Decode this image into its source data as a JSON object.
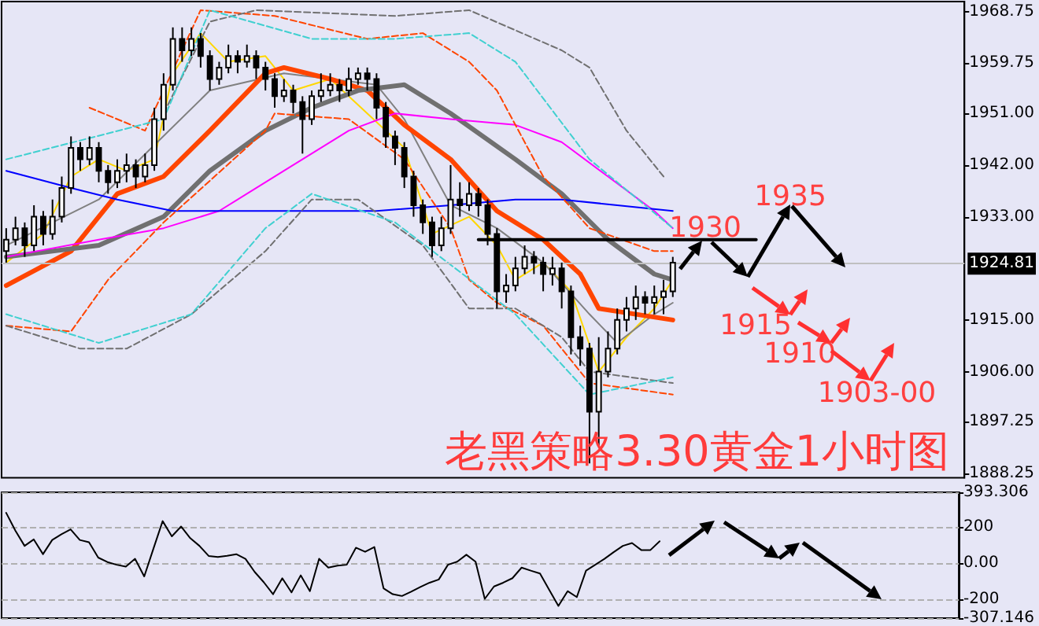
{
  "chart_data": [
    {
      "type": "candlestick",
      "title": "老黑策略3.30黄金1小时图",
      "categories": [
        null,
        null,
        null,
        null,
        null,
        null,
        null,
        null,
        null,
        null,
        null,
        null,
        null,
        null,
        null,
        null,
        null,
        null,
        null,
        null,
        null,
        null,
        null,
        null,
        null,
        null,
        null,
        null,
        null,
        null,
        null,
        null,
        null,
        null,
        null,
        null,
        null,
        null,
        null,
        null,
        null,
        null,
        null,
        null,
        null,
        null,
        null,
        null,
        null,
        null,
        null,
        null,
        null,
        null,
        null,
        null,
        null,
        null,
        null,
        null,
        null,
        null,
        null,
        null,
        null,
        null,
        null,
        null,
        null,
        null,
        null,
        null,
        null,
        null,
        null,
        null,
        null,
        null,
        null,
        null,
        null,
        null,
        null,
        null,
        null,
        null,
        null,
        null,
        null,
        null,
        null,
        null,
        null,
        null,
        null,
        null,
        null,
        null,
        null,
        null,
        null,
        null,
        null,
        null
      ],
      "ohlc": [
        [
          1927,
          1931,
          1925,
          1929
        ],
        [
          1929,
          1933,
          1928,
          1931
        ],
        [
          1931,
          1932,
          1926,
          1928
        ],
        [
          1928,
          1935,
          1927,
          1933
        ],
        [
          1933,
          1934,
          1928,
          1930
        ],
        [
          1930,
          1936,
          1929,
          1933
        ],
        [
          1933,
          1940,
          1932,
          1938
        ],
        [
          1938,
          1947,
          1937,
          1945
        ],
        [
          1945,
          1946,
          1941,
          1943
        ],
        [
          1943,
          1947,
          1942,
          1945
        ],
        [
          1945,
          1946,
          1939,
          1941
        ],
        [
          1941,
          1942,
          1937,
          1939
        ],
        [
          1939,
          1943,
          1938,
          1941
        ],
        [
          1941,
          1944,
          1939,
          1942
        ],
        [
          1942,
          1943,
          1938,
          1940
        ],
        [
          1940,
          1944,
          1939,
          1942
        ],
        [
          1942,
          1952,
          1941,
          1950
        ],
        [
          1950,
          1958,
          1948,
          1956
        ],
        [
          1956,
          1966,
          1955,
          1964
        ],
        [
          1964,
          1966,
          1960,
          1962
        ],
        [
          1962,
          1966,
          1961,
          1964
        ],
        [
          1964,
          1965,
          1959,
          1961
        ],
        [
          1961,
          1962,
          1955,
          1957
        ],
        [
          1957,
          1960,
          1956,
          1959
        ],
        [
          1959,
          1963,
          1958,
          1961
        ],
        [
          1961,
          1962,
          1958,
          1960
        ],
        [
          1960,
          1963,
          1959,
          1961
        ],
        [
          1961,
          1962,
          1957,
          1959
        ],
        [
          1959,
          1960,
          1955,
          1957
        ],
        [
          1957,
          1958,
          1952,
          1954
        ],
        [
          1954,
          1957,
          1953,
          1955
        ],
        [
          1955,
          1956,
          1951,
          1953
        ],
        [
          1953,
          1954,
          1944,
          1950
        ],
        [
          1950,
          1955,
          1949,
          1954
        ],
        [
          1954,
          1958,
          1953,
          1955
        ],
        [
          1955,
          1958,
          1954,
          1956
        ],
        [
          1956,
          1957,
          1953,
          1955
        ],
        [
          1955,
          1959,
          1954,
          1957
        ],
        [
          1957,
          1959,
          1956,
          1958
        ],
        [
          1958,
          1959,
          1955,
          1957
        ],
        [
          1957,
          1958,
          1950,
          1952
        ],
        [
          1952,
          1953,
          1945,
          1947
        ],
        [
          1947,
          1948,
          1942,
          1945
        ],
        [
          1945,
          1946,
          1938,
          1940
        ],
        [
          1940,
          1941,
          1933,
          1935
        ],
        [
          1935,
          1936,
          1930,
          1932
        ],
        [
          1932,
          1933,
          1926,
          1928
        ],
        [
          1928,
          1933,
          1927,
          1931
        ],
        [
          1931,
          1942,
          1930,
          1936
        ],
        [
          1936,
          1939,
          1933,
          1935
        ],
        [
          1935,
          1939,
          1934,
          1937
        ],
        [
          1937,
          1938,
          1933,
          1935
        ],
        [
          1935,
          1936,
          1928,
          1930
        ],
        [
          1930,
          1931,
          1917,
          1920
        ],
        [
          1920,
          1923,
          1918,
          1921
        ],
        [
          1921,
          1926,
          1920,
          1924
        ],
        [
          1924,
          1928,
          1923,
          1926
        ],
        [
          1926,
          1927,
          1923,
          1925
        ],
        [
          1925,
          1926,
          1920,
          1923
        ],
        [
          1923,
          1926,
          1921,
          1924
        ],
        [
          1924,
          1925,
          1917,
          1920
        ],
        [
          1920,
          1921,
          1909,
          1912
        ],
        [
          1912,
          1914,
          1907,
          1910
        ],
        [
          1910,
          1911,
          1890,
          1899
        ],
        [
          1899,
          1912,
          1893,
          1906
        ],
        [
          1906,
          1913,
          1905,
          1910
        ],
        [
          1910,
          1917,
          1909,
          1915
        ],
        [
          1915,
          1919,
          1913,
          1917
        ],
        [
          1917,
          1921,
          1915,
          1919
        ],
        [
          1919,
          1920,
          1916,
          1918
        ],
        [
          1918,
          1921,
          1916,
          1919
        ],
        [
          1919,
          1922,
          1916,
          1920
        ],
        [
          1920,
          1926,
          1919,
          1925
        ],
        null,
        null,
        null,
        null,
        null,
        null,
        null,
        null,
        null,
        null,
        null,
        null,
        null,
        null,
        null,
        null,
        null,
        null,
        null,
        null,
        null,
        null,
        null,
        null,
        null,
        null,
        null,
        null,
        null,
        null,
        null
      ],
      "series": [
        {
          "type": "line",
          "color": "#ffd700",
          "line_style": "solid",
          "values": [
            1925,
            null,
            null,
            null,
            1930,
            null,
            null,
            1940,
            null,
            null,
            1943,
            null,
            null,
            1941,
            null,
            null,
            1943,
            null,
            1958,
            null,
            null,
            1965,
            null,
            null,
            1960,
            null,
            null,
            null,
            1961,
            null,
            null,
            1955,
            null,
            null,
            null,
            1957,
            null,
            null,
            null,
            null,
            null,
            null,
            null,
            1945,
            null,
            null,
            1930,
            null,
            null,
            null,
            1933,
            null,
            null,
            1928,
            null,
            1922,
            null,
            null,
            1925,
            null,
            null,
            1920,
            null,
            null,
            1906,
            null,
            null,
            1912,
            null,
            null,
            1917,
            null,
            1922,
            null,
            null,
            null,
            null,
            null,
            null,
            null,
            null,
            null,
            null,
            null,
            null,
            null,
            null,
            null,
            null,
            null,
            null,
            null,
            null,
            null,
            null,
            null,
            null,
            null,
            null,
            null,
            null,
            null,
            null,
            null
          ]
        },
        {
          "type": "line",
          "color": "#808080",
          "line_style": "solid",
          "values": [
            1928,
            null,
            null,
            null,
            null,
            null,
            null,
            null,
            null,
            null,
            1936,
            null,
            null,
            null,
            null,
            null,
            null,
            null,
            null,
            null,
            null,
            null,
            1955,
            null,
            null,
            null,
            null,
            null,
            null,
            null,
            1958,
            null,
            null,
            null,
            null,
            null,
            null,
            null,
            null,
            null,
            1956,
            null,
            null,
            1950,
            null,
            null,
            null,
            null,
            1935,
            null,
            null,
            null,
            null,
            1931,
            null,
            null,
            null,
            null,
            1925,
            null,
            null,
            null,
            null,
            1916,
            null,
            null,
            1911,
            null,
            null,
            null,
            1916,
            null,
            1918,
            null,
            null,
            null,
            null,
            null,
            null,
            null,
            null,
            null,
            null,
            null,
            null,
            null,
            null,
            null,
            null,
            null,
            null,
            null,
            null,
            null,
            null,
            null,
            null,
            null,
            null,
            null,
            null,
            null,
            null,
            null
          ]
        },
        {
          "type": "line",
          "color": "#ff4500",
          "line_style": "solid",
          "values": [
            1921,
            null,
            null,
            null,
            null,
            null,
            null,
            1927,
            null,
            null,
            null,
            null,
            1937,
            null,
            null,
            null,
            null,
            1940,
            null,
            null,
            null,
            null,
            1948,
            null,
            null,
            null,
            null,
            null,
            1958,
            null,
            1959,
            null,
            null,
            null,
            null,
            1957,
            null,
            null,
            null,
            1955,
            null,
            null,
            null,
            1949,
            null,
            null,
            null,
            null,
            1943,
            null,
            null,
            null,
            null,
            1934,
            null,
            null,
            null,
            null,
            1929,
            null,
            null,
            null,
            1923,
            null,
            1917,
            null,
            null,
            null,
            null,
            null,
            null,
            null,
            1915,
            null,
            null,
            null,
            null,
            null,
            null,
            null,
            null,
            null,
            null,
            null,
            null,
            null,
            null,
            null,
            null,
            null,
            null,
            null,
            null,
            null,
            null,
            null,
            null,
            null,
            null,
            null,
            null,
            null,
            null,
            null
          ]
        },
        {
          "type": "line",
          "color": "#707070",
          "line_style": "solid",
          "values": [
            1926,
            null,
            null,
            null,
            null,
            null,
            null,
            null,
            null,
            null,
            1928,
            null,
            null,
            null,
            null,
            null,
            null,
            1933,
            null,
            null,
            null,
            null,
            1941,
            null,
            null,
            null,
            null,
            null,
            1948,
            null,
            null,
            null,
            null,
            1952,
            null,
            null,
            null,
            null,
            1955,
            null,
            null,
            null,
            null,
            1956,
            null,
            null,
            null,
            null,
            1951,
            null,
            null,
            null,
            null,
            null,
            null,
            1943,
            null,
            null,
            null,
            null,
            1937,
            null,
            null,
            null,
            null,
            1929,
            null,
            null,
            null,
            null,
            1923,
            null,
            1922,
            null,
            null,
            null,
            null,
            null,
            null,
            null,
            null,
            null,
            null,
            null,
            null,
            null,
            null,
            null,
            null,
            null,
            null,
            null,
            null,
            null,
            null,
            null,
            null,
            null,
            null,
            null,
            null,
            null,
            null,
            null
          ]
        },
        {
          "type": "line",
          "color": "#ff00ff",
          "line_style": "solid",
          "values": [
            1926,
            null,
            null,
            null,
            null,
            null,
            null,
            null,
            null,
            null,
            1929,
            null,
            null,
            null,
            null,
            null,
            null,
            1931,
            null,
            null,
            null,
            null,
            null,
            1934,
            null,
            null,
            null,
            null,
            null,
            null,
            1941,
            null,
            null,
            null,
            null,
            null,
            null,
            1948,
            null,
            null,
            null,
            null,
            1951,
            null,
            null,
            null,
            null,
            null,
            1950,
            null,
            null,
            null,
            null,
            null,
            null,
            1949,
            null,
            null,
            null,
            null,
            1946,
            null,
            null,
            null,
            null,
            1940,
            null,
            null,
            null,
            null,
            1934,
            null,
            1931,
            null,
            null,
            null,
            null,
            null,
            null,
            null,
            null,
            null,
            null,
            null,
            null,
            null,
            null,
            null,
            null,
            null,
            null,
            null,
            null,
            null,
            null,
            null,
            null,
            null,
            null,
            null,
            null,
            null,
            null,
            null
          ]
        },
        {
          "type": "line",
          "color": "#0000ff",
          "line_style": "solid",
          "values": [
            1941,
            null,
            null,
            null,
            null,
            null,
            null,
            1938,
            null,
            null,
            null,
            null,
            1936,
            null,
            null,
            null,
            null,
            null,
            1934,
            null,
            null,
            null,
            null,
            null,
            1934,
            null,
            null,
            null,
            null,
            null,
            null,
            null,
            null,
            1934,
            null,
            null,
            null,
            null,
            null,
            null,
            1934,
            null,
            null,
            null,
            null,
            null,
            null,
            null,
            1935,
            null,
            null,
            null,
            null,
            null,
            null,
            1936,
            null,
            null,
            null,
            null,
            1936,
            null,
            null,
            null,
            null,
            null,
            1935,
            null,
            null,
            null,
            null,
            null,
            1934,
            null,
            null,
            null,
            null,
            null,
            null,
            null,
            null,
            null,
            null,
            null,
            null,
            null,
            null,
            null,
            null,
            null,
            null,
            null,
            null,
            null,
            null,
            null,
            null,
            null,
            null,
            null,
            null,
            null,
            null,
            null
          ]
        },
        {
          "type": "line",
          "color": "#ff4500",
          "line_style": "dashed",
          "values": [
            null,
            null,
            null,
            null,
            null,
            null,
            null,
            null,
            null,
            1952,
            null,
            null,
            null,
            null,
            null,
            1948,
            null,
            null,
            null,
            1962,
            null,
            1969,
            null,
            null,
            null,
            null,
            null,
            null,
            null,
            1968,
            null,
            null,
            null,
            null,
            null,
            null,
            null,
            null,
            null,
            1964,
            null,
            null,
            null,
            null,
            null,
            1965,
            null,
            null,
            null,
            null,
            1960,
            null,
            null,
            1955,
            null,
            null,
            null,
            null,
            1940,
            null,
            null,
            null,
            null,
            1931,
            null,
            null,
            null,
            null,
            null,
            null,
            1927,
            null,
            1927,
            null,
            null,
            null,
            null,
            null,
            null,
            null,
            null,
            null,
            null,
            null,
            null,
            null,
            null,
            null,
            null,
            null,
            null,
            null,
            null,
            null,
            null,
            null,
            null,
            null,
            null,
            null,
            null,
            null,
            null,
            null
          ]
        },
        {
          "type": "line",
          "color": "#ff4500",
          "line_style": "dashed",
          "values": [
            1914,
            null,
            null,
            null,
            null,
            null,
            null,
            1913,
            null,
            null,
            null,
            1922,
            null,
            null,
            null,
            null,
            null,
            1932,
            null,
            null,
            null,
            null,
            null,
            null,
            null,
            null,
            null,
            null,
            1948,
            1951,
            null,
            null,
            null,
            null,
            null,
            null,
            null,
            1950,
            null,
            null,
            null,
            null,
            null,
            1943,
            null,
            null,
            null,
            null,
            1931,
            null,
            1922,
            null,
            null,
            1918,
            null,
            null,
            null,
            null,
            1914,
            null,
            null,
            null,
            null,
            1904,
            null,
            null,
            null,
            null,
            null,
            null,
            null,
            null,
            1902,
            null,
            null,
            null,
            null,
            null,
            null,
            null,
            null,
            null,
            null,
            null,
            null,
            null,
            null,
            null,
            null,
            null,
            null,
            null,
            null,
            null,
            null,
            null,
            null,
            null,
            null,
            null,
            null,
            null,
            null,
            null
          ]
        },
        {
          "type": "line",
          "color": "#707070",
          "line_style": "dashed",
          "values": [
            null,
            null,
            null,
            null,
            null,
            null,
            null,
            null,
            null,
            null,
            null,
            null,
            null,
            null,
            null,
            null,
            null,
            1951,
            null,
            null,
            null,
            null,
            1967,
            null,
            null,
            null,
            null,
            1969,
            null,
            null,
            null,
            null,
            null,
            null,
            null,
            null,
            null,
            null,
            null,
            null,
            null,
            null,
            1968,
            null,
            null,
            null,
            null,
            null,
            null,
            null,
            1969,
            null,
            null,
            null,
            null,
            null,
            null,
            null,
            null,
            null,
            1962,
            null,
            null,
            1959,
            null,
            null,
            null,
            1948,
            null,
            null,
            null,
            1940,
            null,
            null,
            null,
            null,
            null,
            null,
            null,
            null,
            null,
            null,
            null,
            null,
            null,
            null,
            null,
            null,
            null,
            null,
            null,
            null,
            null,
            null,
            null,
            null,
            null,
            null,
            null,
            null,
            null,
            null,
            null,
            null
          ]
        },
        {
          "type": "line",
          "color": "#707070",
          "line_style": "dashed",
          "values": [
            1914,
            null,
            null,
            null,
            null,
            null,
            null,
            null,
            1910,
            null,
            null,
            null,
            null,
            1910,
            null,
            null,
            null,
            null,
            null,
            null,
            1916,
            null,
            null,
            null,
            null,
            null,
            null,
            null,
            1927,
            null,
            null,
            null,
            null,
            1936,
            null,
            null,
            null,
            null,
            1936,
            null,
            null,
            null,
            null,
            null,
            null,
            1928,
            null,
            null,
            null,
            null,
            1917,
            null,
            null,
            null,
            null,
            1917,
            null,
            null,
            null,
            null,
            1912,
            null,
            null,
            1906,
            null,
            null,
            null,
            null,
            null,
            null,
            null,
            null,
            1904,
            null,
            null,
            null,
            null,
            null,
            null,
            null,
            null,
            null,
            null,
            null,
            null,
            null,
            null,
            null,
            null,
            null,
            null,
            null,
            null,
            null,
            null,
            null,
            null,
            null,
            null,
            null,
            null,
            null,
            null,
            null
          ]
        },
        {
          "type": "line",
          "color": "#40d0d0",
          "line_style": "dashed",
          "values": [
            1943,
            null,
            null,
            null,
            null,
            null,
            null,
            null,
            null,
            null,
            null,
            null,
            null,
            null,
            null,
            null,
            null,
            1950,
            null,
            null,
            null,
            null,
            1969,
            null,
            null,
            null,
            null,
            null,
            null,
            null,
            null,
            null,
            null,
            1964,
            null,
            null,
            null,
            null,
            null,
            null,
            null,
            null,
            1964,
            null,
            null,
            null,
            null,
            null,
            null,
            null,
            1965,
            null,
            null,
            null,
            null,
            1960,
            null,
            null,
            null,
            null,
            null,
            null,
            null,
            1943,
            null,
            null,
            null,
            null,
            null,
            null,
            null,
            null,
            1931,
            null,
            null,
            null,
            null,
            null,
            null,
            null,
            null,
            null,
            null,
            null,
            null,
            null,
            null,
            null,
            null,
            null,
            null,
            null,
            null,
            null,
            null,
            null,
            null,
            null,
            null,
            null,
            null,
            null,
            null,
            null
          ]
        },
        {
          "type": "line",
          "color": "#40d0d0",
          "line_style": "dashed",
          "values": [
            1916,
            null,
            null,
            null,
            null,
            null,
            null,
            null,
            null,
            null,
            1911,
            null,
            null,
            null,
            null,
            null,
            null,
            null,
            null,
            null,
            1916,
            null,
            null,
            null,
            null,
            null,
            null,
            null,
            1931,
            null,
            null,
            null,
            null,
            1937,
            null,
            null,
            null,
            null,
            null,
            null,
            null,
            null,
            1932,
            null,
            null,
            null,
            null,
            null,
            null,
            null,
            null,
            null,
            null,
            null,
            null,
            1916,
            null,
            null,
            null,
            null,
            null,
            null,
            null,
            1902,
            null,
            null,
            null,
            null,
            null,
            null,
            null,
            null,
            1905,
            null,
            null,
            null,
            null,
            null,
            null,
            null,
            null,
            null,
            null,
            null,
            null,
            null,
            null,
            null,
            null,
            null,
            null,
            null,
            null,
            null,
            null,
            null,
            null,
            null,
            null,
            null,
            null,
            null,
            null,
            null
          ]
        },
        {
          "type": "line",
          "color": "#000000",
          "line_style": "solid",
          "values": [
            null,
            null,
            null,
            null,
            null,
            null,
            null,
            null,
            null,
            null,
            null,
            null,
            null,
            null,
            null,
            null,
            null,
            null,
            null,
            null,
            null,
            null,
            null,
            null,
            null,
            null,
            null,
            null,
            null,
            null,
            null,
            null,
            null,
            null,
            null,
            null,
            null,
            null,
            null,
            null,
            null,
            null,
            null,
            null,
            null,
            null,
            null,
            null,
            null,
            null,
            null,
            1929,
            null,
            null,
            null,
            null,
            null,
            null,
            null,
            null,
            null,
            null,
            null,
            null,
            null,
            null,
            null,
            null,
            null,
            null,
            null,
            null,
            null,
            null,
            null,
            null,
            null,
            null,
            null,
            null,
            null,
            1929,
            null,
            null,
            null,
            null,
            null,
            null,
            null,
            null,
            null,
            null,
            null,
            null,
            null,
            null,
            null,
            null,
            null,
            null,
            null,
            null,
            null,
            null
          ]
        }
      ],
      "ylim": [
        1887.5,
        1970.5
      ],
      "yticks": [
        {
          "value": 1968.75,
          "label": "1968.75"
        },
        {
          "value": 1959.75,
          "label": "1959.75"
        },
        {
          "value": 1951,
          "label": "1951.00"
        },
        {
          "value": 1942,
          "label": "1942.00"
        },
        {
          "value": 1933,
          "label": "1933.00"
        },
        {
          "value": 1915,
          "label": "1915.00"
        },
        {
          "value": 1906,
          "label": "1906.00"
        },
        {
          "value": 1897.25,
          "label": "1897.25"
        },
        {
          "value": 1888.25,
          "label": "1888.25"
        }
      ],
      "ref_lines": [
        {
          "axis": "y",
          "value": 1924.81,
          "label": "1924.81",
          "color": "#c0c0c0",
          "line_style": "solid"
        }
      ],
      "annotations": [
        "1930",
        "1935",
        "1915",
        "1910",
        "1903-00"
      ],
      "tick_labels": "y",
      "grid": false,
      "marker": "none"
    },
    {
      "type": "line",
      "color": "#000000",
      "categories": [
        null,
        null,
        null,
        null,
        null,
        null,
        null,
        null,
        null,
        null,
        null,
        null,
        null,
        null,
        null,
        null,
        null,
        null,
        null,
        null,
        null,
        null,
        null,
        null,
        null,
        null,
        null,
        null,
        null,
        null,
        null,
        null,
        null,
        null,
        null,
        null,
        null,
        null,
        null,
        null,
        null,
        null,
        null,
        null,
        null,
        null,
        null,
        null,
        null,
        null,
        null,
        null,
        null,
        null,
        null,
        null,
        null,
        null,
        null,
        null,
        null,
        null,
        null,
        null,
        null,
        null,
        null,
        null,
        null,
        null,
        null,
        null,
        null,
        null,
        null,
        null,
        null,
        null,
        null,
        null,
        null,
        null,
        null,
        null,
        null,
        null,
        null,
        null,
        null,
        null,
        null,
        null,
        null,
        null,
        null,
        null,
        null,
        null,
        null,
        null,
        null,
        null,
        null,
        null
      ],
      "values": [
        279,
        180,
        95,
        131,
        49,
        128,
        160,
        187,
        128,
        115,
        30,
        5,
        -10,
        -20,
        23,
        -75,
        80,
        233,
        148,
        203,
        138,
        95,
        39,
        33,
        40,
        49,
        23,
        -50,
        -108,
        -174,
        -85,
        -164,
        -69,
        -157,
        23,
        -26,
        -15,
        -10,
        85,
        62,
        89,
        -141,
        -174,
        -184,
        -160,
        -134,
        -110,
        -92,
        -10,
        7,
        46,
        7,
        -200,
        -131,
        -110,
        -85,
        -26,
        -43,
        -59,
        -150,
        -239,
        -157,
        -190,
        -43,
        -10,
        23,
        60,
        95,
        111,
        72,
        72,
        121,
        null,
        null,
        null,
        null,
        null,
        null,
        null,
        null,
        null,
        null,
        null,
        null,
        null,
        null,
        null,
        null,
        null,
        null,
        null,
        null,
        null,
        null,
        null,
        null,
        null,
        null,
        null,
        null,
        null,
        null,
        null,
        null
      ],
      "ylim": [
        -307.146,
        393.306
      ],
      "yticks": [
        {
          "value": 393.306,
          "label": "393.306"
        },
        {
          "value": 200,
          "label": "200"
        },
        {
          "value": 0,
          "label": "0.00"
        },
        {
          "value": -200,
          "label": "-200"
        },
        {
          "value": -307.146,
          "label": "-307.146"
        }
      ],
      "tick_labels": "y",
      "grid": "y",
      "marker": "none"
    }
  ]
}
